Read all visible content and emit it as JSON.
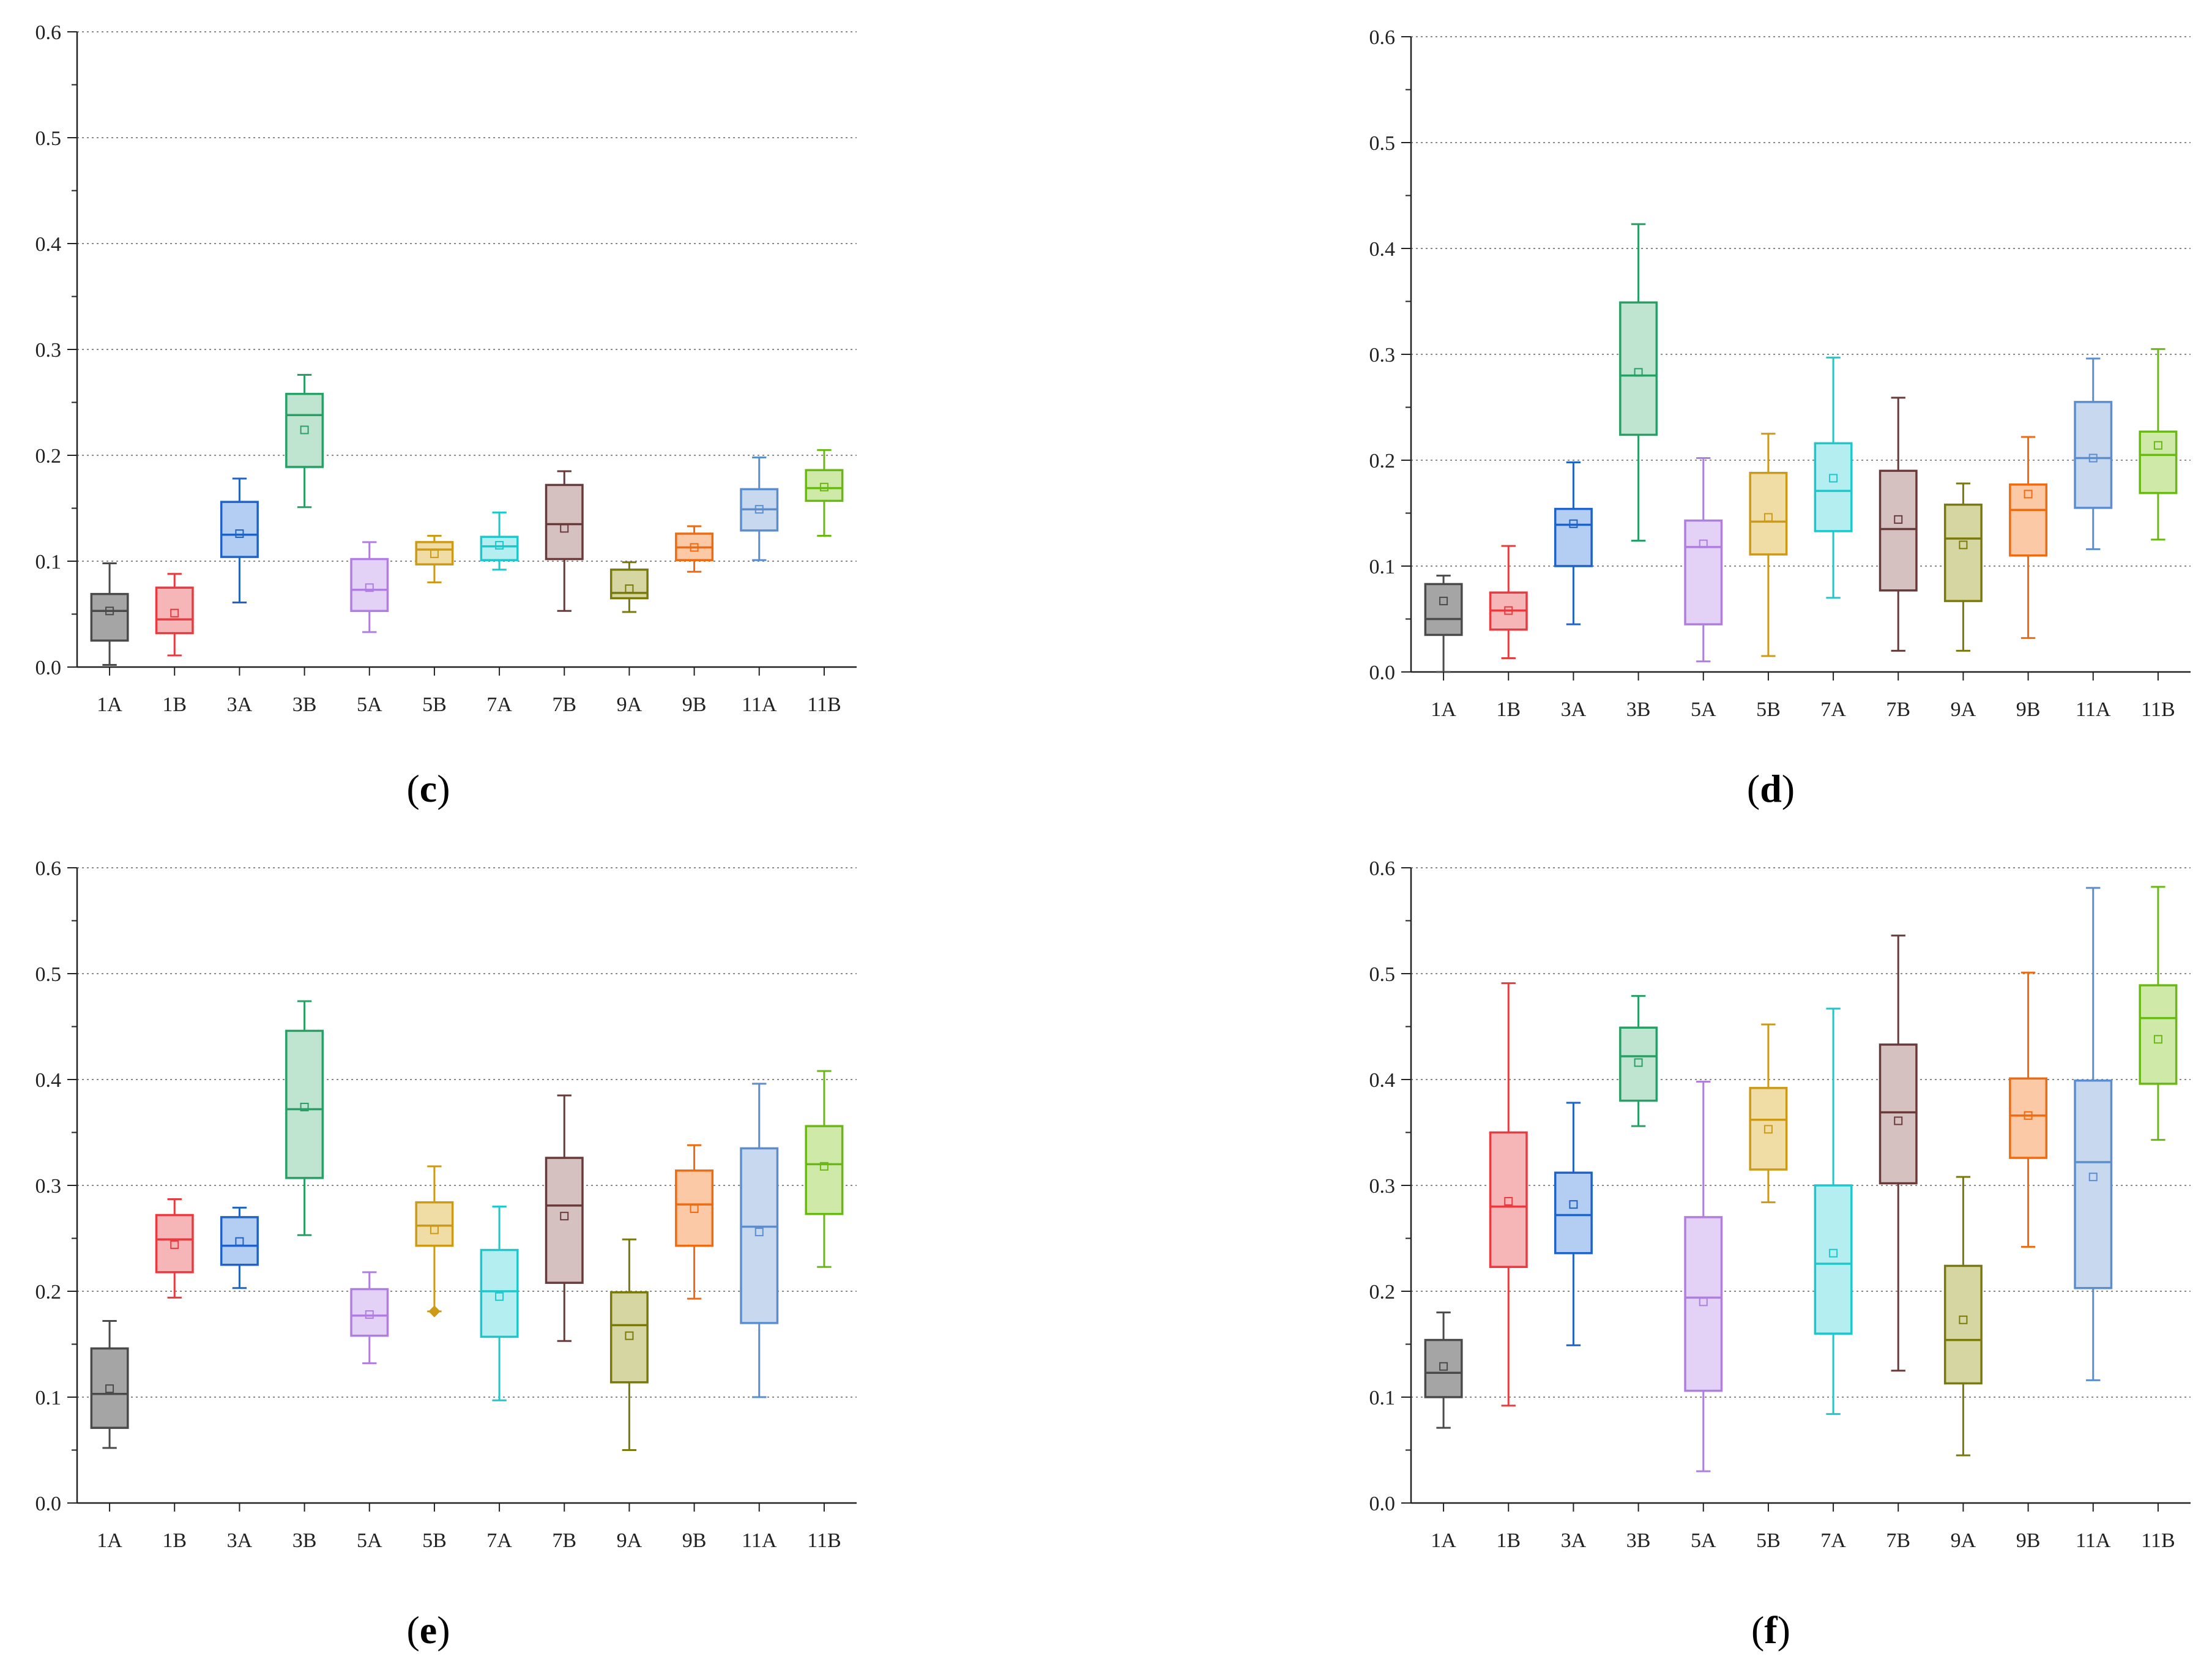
{
  "figure": {
    "panels": [
      {
        "id": "c",
        "label_open": "(",
        "label_letter": "c",
        "label_close": ")"
      },
      {
        "id": "d",
        "label_open": "(",
        "label_letter": "d",
        "label_close": ")"
      },
      {
        "id": "e",
        "label_open": "(",
        "label_letter": "e",
        "label_close": ")"
      },
      {
        "id": "f",
        "label_open": "(",
        "label_letter": "f",
        "label_close": ")"
      }
    ]
  },
  "chart_data": [
    {
      "panel": "c",
      "type": "boxplot",
      "title": "",
      "xlabel": "",
      "ylabel": "",
      "ylim": [
        0,
        0.6
      ],
      "yticks": [
        "0.0",
        "0.1",
        "0.2",
        "0.3",
        "0.4",
        "0.5",
        "0.6"
      ],
      "grid": "horizontal dotted",
      "categories": [
        "1A",
        "1B",
        "3A",
        "3B",
        "5A",
        "5B",
        "7A",
        "7B",
        "9A",
        "9B",
        "11A",
        "11B"
      ],
      "boxes": [
        {
          "min": 0.002,
          "q1": 0.025,
          "median": 0.053,
          "q3": 0.069,
          "max": 0.098,
          "mean": 0.053
        },
        {
          "min": 0.011,
          "q1": 0.032,
          "median": 0.045,
          "q3": 0.075,
          "max": 0.088,
          "mean": 0.051
        },
        {
          "min": 0.061,
          "q1": 0.104,
          "median": 0.125,
          "q3": 0.156,
          "max": 0.178,
          "mean": 0.126
        },
        {
          "min": 0.151,
          "q1": 0.189,
          "median": 0.238,
          "q3": 0.258,
          "max": 0.276,
          "mean": 0.224
        },
        {
          "min": 0.033,
          "q1": 0.053,
          "median": 0.073,
          "q3": 0.102,
          "max": 0.118,
          "mean": 0.075
        },
        {
          "min": 0.08,
          "q1": 0.097,
          "median": 0.111,
          "q3": 0.118,
          "max": 0.124,
          "mean": 0.107
        },
        {
          "min": 0.092,
          "q1": 0.101,
          "median": 0.114,
          "q3": 0.123,
          "max": 0.146,
          "mean": 0.115
        },
        {
          "min": 0.053,
          "q1": 0.102,
          "median": 0.135,
          "q3": 0.172,
          "max": 0.185,
          "mean": 0.131
        },
        {
          "min": 0.052,
          "q1": 0.065,
          "median": 0.07,
          "q3": 0.092,
          "max": 0.099,
          "mean": 0.074
        },
        {
          "min": 0.09,
          "q1": 0.101,
          "median": 0.113,
          "q3": 0.126,
          "max": 0.133,
          "mean": 0.113
        },
        {
          "min": 0.101,
          "q1": 0.129,
          "median": 0.149,
          "q3": 0.168,
          "max": 0.198,
          "mean": 0.149
        },
        {
          "min": 0.124,
          "q1": 0.157,
          "median": 0.169,
          "q3": 0.186,
          "max": 0.205,
          "mean": 0.17
        }
      ]
    },
    {
      "panel": "d",
      "type": "boxplot",
      "title": "",
      "xlabel": "",
      "ylabel": "",
      "ylim": [
        0,
        0.6
      ],
      "yticks": [
        "0.0",
        "0.1",
        "0.2",
        "0.3",
        "0.4",
        "0.5",
        "0.6"
      ],
      "grid": "horizontal dotted",
      "categories": [
        "1A",
        "1B",
        "3A",
        "3B",
        "5A",
        "5B",
        "7A",
        "7B",
        "9A",
        "9B",
        "11A",
        "11B"
      ],
      "boxes": [
        {
          "min": 0.0,
          "q1": 0.035,
          "median": 0.05,
          "q3": 0.083,
          "max": 0.091,
          "mean": 0.067
        },
        {
          "min": 0.013,
          "q1": 0.04,
          "median": 0.058,
          "q3": 0.075,
          "max": 0.119,
          "mean": 0.058
        },
        {
          "min": 0.045,
          "q1": 0.1,
          "median": 0.139,
          "q3": 0.154,
          "max": 0.198,
          "mean": 0.14
        },
        {
          "min": 0.124,
          "q1": 0.224,
          "median": 0.28,
          "q3": 0.349,
          "max": 0.423,
          "mean": 0.283
        },
        {
          "min": 0.01,
          "q1": 0.045,
          "median": 0.118,
          "q3": 0.143,
          "max": 0.202,
          "mean": 0.121
        },
        {
          "min": 0.015,
          "q1": 0.111,
          "median": 0.142,
          "q3": 0.188,
          "max": 0.225,
          "mean": 0.146
        },
        {
          "min": 0.07,
          "q1": 0.133,
          "median": 0.171,
          "q3": 0.216,
          "max": 0.297,
          "mean": 0.183
        },
        {
          "min": 0.02,
          "q1": 0.077,
          "median": 0.135,
          "q3": 0.19,
          "max": 0.259,
          "mean": 0.144
        },
        {
          "min": 0.02,
          "q1": 0.067,
          "median": 0.126,
          "q3": 0.158,
          "max": 0.178,
          "mean": 0.12
        },
        {
          "min": 0.032,
          "q1": 0.11,
          "median": 0.153,
          "q3": 0.177,
          "max": 0.222,
          "mean": 0.168
        },
        {
          "min": 0.116,
          "q1": 0.155,
          "median": 0.202,
          "q3": 0.255,
          "max": 0.296,
          "mean": 0.202
        },
        {
          "min": 0.125,
          "q1": 0.169,
          "median": 0.205,
          "q3": 0.227,
          "max": 0.305,
          "mean": 0.214
        }
      ]
    },
    {
      "panel": "e",
      "type": "boxplot",
      "title": "",
      "xlabel": "",
      "ylabel": "",
      "ylim": [
        0,
        0.6
      ],
      "yticks": [
        "0.0",
        "0.1",
        "0.2",
        "0.3",
        "0.4",
        "0.5",
        "0.6"
      ],
      "grid": "horizontal dotted",
      "categories": [
        "1A",
        "1B",
        "3A",
        "3B",
        "5A",
        "5B",
        "7A",
        "7B",
        "9A",
        "9B",
        "11A",
        "11B"
      ],
      "boxes": [
        {
          "min": 0.052,
          "q1": 0.071,
          "median": 0.103,
          "q3": 0.146,
          "max": 0.172,
          "mean": 0.108
        },
        {
          "min": 0.194,
          "q1": 0.218,
          "median": 0.249,
          "q3": 0.272,
          "max": 0.287,
          "mean": 0.244
        },
        {
          "min": 0.203,
          "q1": 0.225,
          "median": 0.243,
          "q3": 0.27,
          "max": 0.279,
          "mean": 0.247
        },
        {
          "min": 0.253,
          "q1": 0.307,
          "median": 0.372,
          "q3": 0.446,
          "max": 0.474,
          "mean": 0.374
        },
        {
          "min": 0.132,
          "q1": 0.158,
          "median": 0.177,
          "q3": 0.202,
          "max": 0.218,
          "mean": 0.178
        },
        {
          "min": 0.181,
          "q1": 0.243,
          "median": 0.262,
          "q3": 0.284,
          "max": 0.318,
          "mean": 0.258
        },
        {
          "min": 0.097,
          "q1": 0.157,
          "median": 0.2,
          "q3": 0.239,
          "max": 0.28,
          "mean": 0.195
        },
        {
          "min": 0.153,
          "q1": 0.208,
          "median": 0.281,
          "q3": 0.326,
          "max": 0.385,
          "mean": 0.271
        },
        {
          "min": 0.05,
          "q1": 0.114,
          "median": 0.168,
          "q3": 0.199,
          "max": 0.249,
          "mean": 0.158
        },
        {
          "min": 0.193,
          "q1": 0.243,
          "median": 0.282,
          "q3": 0.314,
          "max": 0.338,
          "mean": 0.278
        },
        {
          "min": 0.1,
          "q1": 0.17,
          "median": 0.261,
          "q3": 0.335,
          "max": 0.396,
          "mean": 0.256
        },
        {
          "min": 0.223,
          "q1": 0.273,
          "median": 0.32,
          "q3": 0.356,
          "max": 0.408,
          "mean": 0.318
        }
      ],
      "outliers": [
        {
          "category": "5B",
          "value": 0.181
        }
      ]
    },
    {
      "panel": "f",
      "type": "boxplot",
      "title": "",
      "xlabel": "",
      "ylabel": "",
      "ylim": [
        0,
        0.6
      ],
      "yticks": [
        "0.0",
        "0.1",
        "0.2",
        "0.3",
        "0.4",
        "0.5",
        "0.6"
      ],
      "grid": "horizontal dotted",
      "categories": [
        "1A",
        "1B",
        "3A",
        "3B",
        "5A",
        "5B",
        "7A",
        "7B",
        "9A",
        "9B",
        "11A",
        "11B"
      ],
      "boxes": [
        {
          "min": 0.071,
          "q1": 0.1,
          "median": 0.123,
          "q3": 0.154,
          "max": 0.18,
          "mean": 0.129
        },
        {
          "min": 0.092,
          "q1": 0.223,
          "median": 0.28,
          "q3": 0.35,
          "max": 0.491,
          "mean": 0.285
        },
        {
          "min": 0.149,
          "q1": 0.236,
          "median": 0.272,
          "q3": 0.312,
          "max": 0.378,
          "mean": 0.282
        },
        {
          "min": 0.356,
          "q1": 0.38,
          "median": 0.422,
          "q3": 0.449,
          "max": 0.479,
          "mean": 0.416
        },
        {
          "min": 0.03,
          "q1": 0.106,
          "median": 0.194,
          "q3": 0.27,
          "max": 0.398,
          "mean": 0.19
        },
        {
          "min": 0.284,
          "q1": 0.315,
          "median": 0.362,
          "q3": 0.392,
          "max": 0.452,
          "mean": 0.353
        },
        {
          "min": 0.084,
          "q1": 0.16,
          "median": 0.226,
          "q3": 0.3,
          "max": 0.467,
          "mean": 0.236
        },
        {
          "min": 0.125,
          "q1": 0.302,
          "median": 0.369,
          "q3": 0.433,
          "max": 0.536,
          "mean": 0.361
        },
        {
          "min": 0.045,
          "q1": 0.113,
          "median": 0.154,
          "q3": 0.224,
          "max": 0.308,
          "mean": 0.173
        },
        {
          "min": 0.242,
          "q1": 0.326,
          "median": 0.366,
          "q3": 0.401,
          "max": 0.501,
          "mean": 0.366
        },
        {
          "min": 0.116,
          "q1": 0.203,
          "median": 0.322,
          "q3": 0.399,
          "max": 0.581,
          "mean": 0.308
        },
        {
          "min": 0.343,
          "q1": 0.396,
          "median": 0.458,
          "q3": 0.489,
          "max": 0.582,
          "mean": 0.438
        }
      ]
    }
  ],
  "series_colors": [
    "#4a4a4a",
    "#e83a3f",
    "#1f63c6",
    "#26a065",
    "#b07ee0",
    "#cc9a14",
    "#1cc8cc",
    "#6a3a3a",
    "#7a7a0a",
    "#f06a10",
    "#5a8ed0",
    "#6ab814"
  ],
  "fill_colors": [
    "#a5a5a5",
    "#f6b6b8",
    "#b4cdf2",
    "#bfe5d0",
    "#e3d1f6",
    "#f0dca5",
    "#b4eef0",
    "#d6c1c1",
    "#d6d6a2",
    "#fbc9a6",
    "#c8d9ef",
    "#cfeaa8"
  ]
}
